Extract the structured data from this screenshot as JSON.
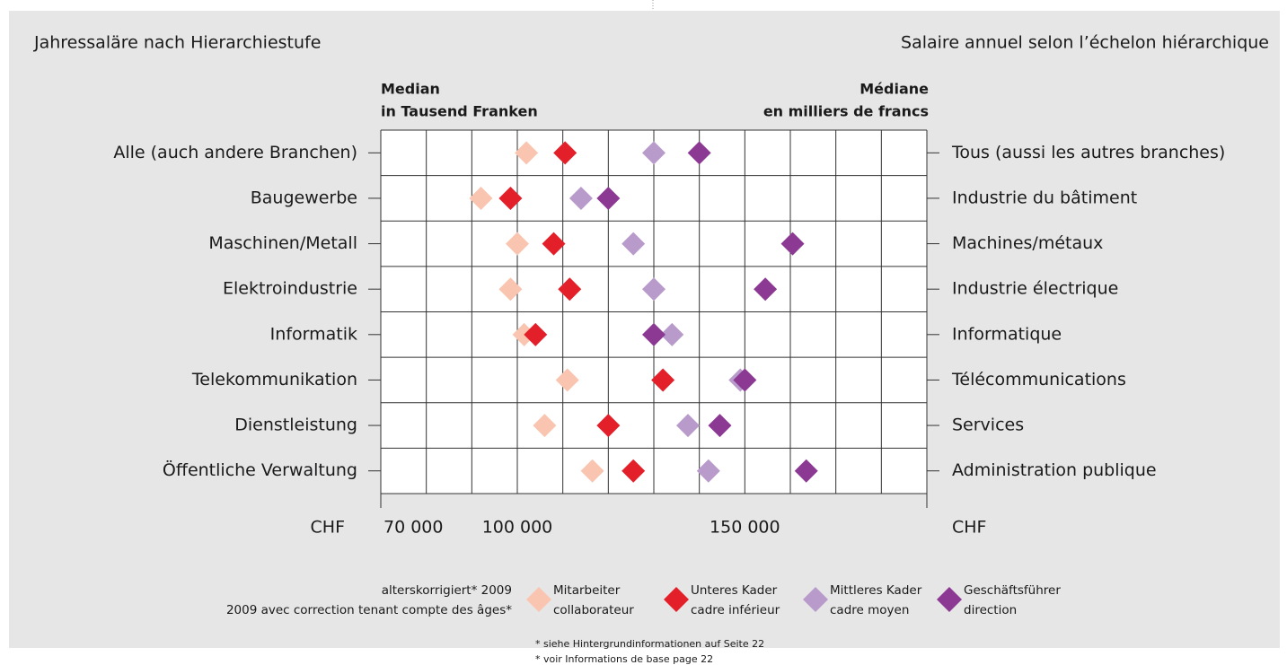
{
  "chart_data": {
    "type": "dot",
    "title": "Jahressaläre nach Hierarchiestufe",
    "title_fr": "Salaire annuel selon l’échelon hiérarchique",
    "axis_label": [
      "Median",
      "in Tausend Franken"
    ],
    "axis_label_fr": [
      "Médiane",
      "en milliers de francs"
    ],
    "xlabel": "CHF",
    "xlabel_fr": "CHF",
    "categories": [
      "Alle (auch andere Branchen)",
      "Baugewerbe",
      "Maschinen/Metall",
      "Elektroindustrie",
      "Informatik",
      "Telekommunikation",
      "Dienstleistung",
      "Öffentliche Verwaltung"
    ],
    "categories_fr": [
      "Tous (aussi les autres branches)",
      "Industrie du bâtiment",
      "Machines/métaux",
      "Industrie électrique",
      "Informatique",
      "Télécommunications",
      "Services",
      "Administration publique"
    ],
    "series": [
      {
        "name": "Mitarbeiter",
        "name_fr": "collaborateur",
        "color": "#f9c5b0",
        "values": [
          102000,
          92000,
          100000,
          98500,
          101500,
          111000,
          106000,
          116500
        ]
      },
      {
        "name": "Unteres Kader",
        "name_fr": "cadre inférieur",
        "color": "#e3202a",
        "values": [
          110500,
          98500,
          108000,
          111500,
          104000,
          132000,
          120000,
          125500
        ]
      },
      {
        "name": "Mittleres Kader",
        "name_fr": "cadre moyen",
        "color": "#b99bcb",
        "values": [
          130000,
          114000,
          125500,
          130000,
          134000,
          149000,
          137500,
          142000
        ]
      },
      {
        "name": "Geschäftsführer",
        "name_fr": "direction",
        "color": "#8c3994",
        "values": [
          140000,
          120000,
          160500,
          154500,
          130000,
          150000,
          144500,
          163500
        ]
      }
    ],
    "xlim": [
      70000,
      190000
    ],
    "xticks": [
      {
        "value": 70000,
        "label": "70 000"
      },
      {
        "value": 100000,
        "label": "100 000"
      },
      {
        "value": 150000,
        "label": "150 000"
      }
    ],
    "xgrid": [
      70000,
      80000,
      90000,
      100000,
      110000,
      120000,
      130000,
      140000,
      150000,
      160000,
      170000,
      180000,
      190000
    ],
    "legend_title": [
      "alterskorrigiert* 2009",
      "2009 avec correction tenant compte des âges*"
    ],
    "footnotes": [
      "* siehe Hintergrundinformationen auf Seite 22",
      "* voir Informations de base page 22"
    ]
  }
}
